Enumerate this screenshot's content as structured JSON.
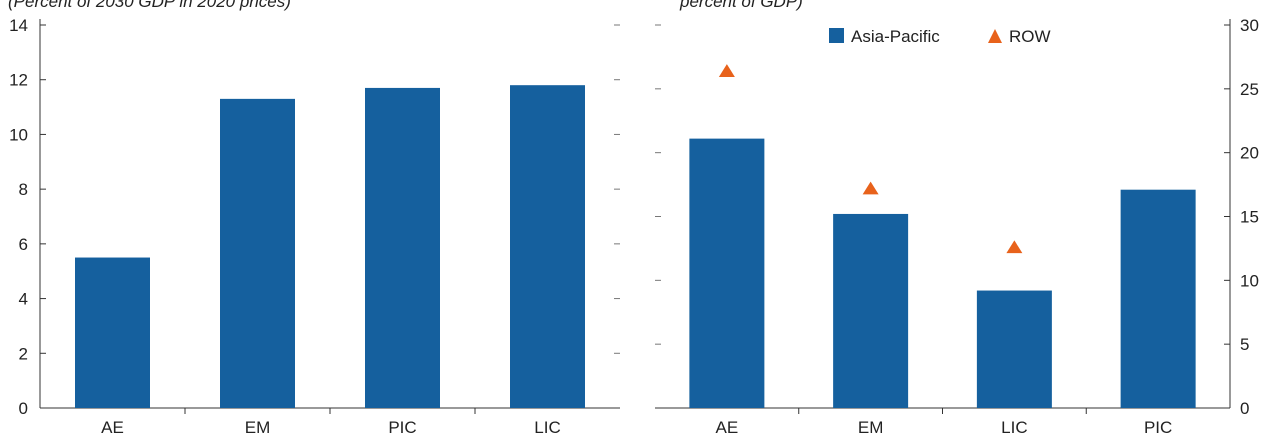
{
  "chart_data": [
    {
      "type": "bar",
      "title": "(Percent of 2030 GDP in 2020 prices)",
      "categories": [
        "AE",
        "EM",
        "PIC",
        "LIC"
      ],
      "series": [
        {
          "values": [
            5.5,
            11.3,
            11.7,
            11.8
          ],
          "color": "#15609e"
        }
      ],
      "ylim": [
        0,
        14
      ],
      "yticks": [
        "0",
        "2",
        "4",
        "6",
        "8",
        "10",
        "12",
        "14"
      ],
      "xlabel": "",
      "ylabel": "",
      "grid": false
    },
    {
      "type": "bar",
      "title": "percent of GDP)",
      "categories": [
        "AE",
        "EM",
        "LIC",
        "PIC"
      ],
      "series": [
        {
          "name": "Asia-Pacific",
          "type": "bar",
          "values": [
            21.1,
            15.2,
            9.2,
            17.1
          ],
          "color": "#15609e"
        },
        {
          "name": "ROW",
          "type": "scatter",
          "marker": "triangle",
          "values": [
            26.4,
            17.2,
            12.6,
            null
          ],
          "color": "#e8621b"
        }
      ],
      "ylim": [
        0,
        30
      ],
      "yticks": [
        "0",
        "5",
        "10",
        "15",
        "20",
        "25",
        "30"
      ],
      "y_axis_side": "right",
      "legend": "top-right",
      "xlabel": "",
      "ylabel": "",
      "grid": false
    }
  ]
}
